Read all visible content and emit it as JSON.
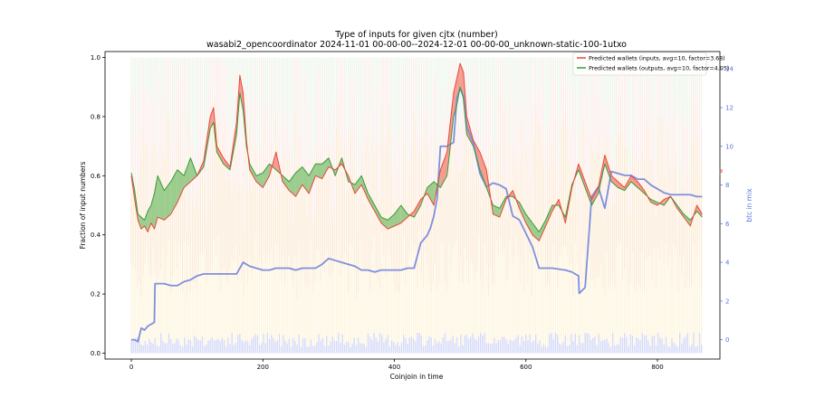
{
  "chart_data": {
    "type": "line",
    "title": "Type of inputs for given cjtx (number)",
    "subtitle": "wasabi2_opencoordinator 2024-11-01 00-00-00--2024-12-01 00-00-00_unknown-static-100-1utxo",
    "xlabel": "Coinjoin in time",
    "ylabel": "Fraction of input numbers",
    "y2label": "btc in mix",
    "xlim": [
      -40,
      895
    ],
    "ylim": [
      -0.02,
      1.02
    ],
    "y2lim": [
      -1.0,
      14.9
    ],
    "xticks": [
      0,
      200,
      400,
      600,
      800
    ],
    "yticks": [
      0.0,
      0.2,
      0.4,
      0.6,
      0.8,
      1.0
    ],
    "y2ticks": [
      0,
      2,
      4,
      6,
      8,
      10,
      12,
      14
    ],
    "legend_position": "top-right",
    "grid": false,
    "colors": {
      "inputs": "#e8483a",
      "outputs": "#3a9a3a",
      "fill_inputs_above": "#f08070",
      "fill_outputs_above": "#7cc070",
      "btc": "#7f8fde",
      "right_axis": "#5577dd",
      "annotation": "#e8483a"
    },
    "annotation": "w",
    "series": [
      {
        "name": "Predicted wallets (inputs, avg=10, factor=3.68)",
        "x": [
          0,
          5,
          10,
          15,
          20,
          25,
          30,
          35,
          40,
          50,
          60,
          70,
          80,
          90,
          100,
          110,
          120,
          125,
          130,
          140,
          150,
          160,
          165,
          170,
          175,
          180,
          190,
          200,
          210,
          220,
          230,
          240,
          250,
          260,
          270,
          280,
          290,
          300,
          310,
          320,
          330,
          340,
          350,
          360,
          370,
          380,
          390,
          400,
          410,
          420,
          430,
          440,
          450,
          460,
          470,
          480,
          490,
          495,
          500,
          505,
          510,
          520,
          530,
          540,
          550,
          560,
          570,
          580,
          590,
          600,
          610,
          620,
          630,
          640,
          650,
          660,
          670,
          680,
          690,
          700,
          710,
          720,
          730,
          740,
          750,
          760,
          770,
          780,
          790,
          800,
          810,
          820,
          830,
          840,
          850,
          860,
          868
        ],
        "values": [
          0.6,
          0.52,
          0.45,
          0.42,
          0.43,
          0.41,
          0.44,
          0.42,
          0.46,
          0.45,
          0.47,
          0.51,
          0.56,
          0.58,
          0.6,
          0.65,
          0.8,
          0.83,
          0.7,
          0.66,
          0.63,
          0.78,
          0.94,
          0.88,
          0.72,
          0.62,
          0.58,
          0.56,
          0.6,
          0.68,
          0.58,
          0.55,
          0.53,
          0.57,
          0.54,
          0.6,
          0.59,
          0.63,
          0.62,
          0.64,
          0.6,
          0.54,
          0.57,
          0.52,
          0.48,
          0.44,
          0.42,
          0.43,
          0.44,
          0.46,
          0.48,
          0.52,
          0.54,
          0.5,
          0.62,
          0.68,
          0.88,
          0.93,
          0.98,
          0.95,
          0.8,
          0.72,
          0.68,
          0.62,
          0.47,
          0.46,
          0.52,
          0.55,
          0.49,
          0.44,
          0.4,
          0.38,
          0.43,
          0.48,
          0.52,
          0.44,
          0.56,
          0.64,
          0.58,
          0.52,
          0.56,
          0.67,
          0.6,
          0.58,
          0.56,
          0.6,
          0.58,
          0.55,
          0.51,
          0.5,
          0.52,
          0.53,
          0.49,
          0.46,
          0.43,
          0.5,
          0.47
        ]
      },
      {
        "name": "Predicted wallets (outputs, avg=10, factor=4.05)",
        "x": [
          0,
          5,
          10,
          15,
          20,
          25,
          30,
          35,
          40,
          50,
          60,
          70,
          80,
          90,
          100,
          110,
          120,
          125,
          130,
          140,
          150,
          160,
          165,
          170,
          175,
          180,
          190,
          200,
          210,
          220,
          230,
          240,
          250,
          260,
          270,
          280,
          290,
          300,
          310,
          320,
          330,
          340,
          350,
          360,
          370,
          380,
          390,
          400,
          410,
          420,
          430,
          440,
          450,
          460,
          470,
          480,
          490,
          495,
          500,
          505,
          510,
          520,
          530,
          540,
          550,
          560,
          570,
          580,
          590,
          600,
          610,
          620,
          630,
          640,
          650,
          660,
          670,
          680,
          690,
          700,
          710,
          720,
          730,
          740,
          750,
          760,
          770,
          780,
          790,
          800,
          810,
          820,
          830,
          840,
          850,
          860,
          868
        ],
        "values": [
          0.61,
          0.55,
          0.47,
          0.46,
          0.45,
          0.48,
          0.5,
          0.54,
          0.6,
          0.55,
          0.58,
          0.62,
          0.6,
          0.66,
          0.6,
          0.63,
          0.76,
          0.78,
          0.68,
          0.64,
          0.62,
          0.74,
          0.88,
          0.82,
          0.7,
          0.64,
          0.6,
          0.61,
          0.64,
          0.62,
          0.6,
          0.58,
          0.61,
          0.63,
          0.6,
          0.64,
          0.64,
          0.66,
          0.6,
          0.66,
          0.58,
          0.57,
          0.6,
          0.54,
          0.5,
          0.46,
          0.45,
          0.47,
          0.5,
          0.47,
          0.46,
          0.5,
          0.56,
          0.58,
          0.56,
          0.6,
          0.8,
          0.84,
          0.9,
          0.86,
          0.74,
          0.7,
          0.62,
          0.56,
          0.5,
          0.49,
          0.53,
          0.53,
          0.51,
          0.47,
          0.44,
          0.41,
          0.45,
          0.5,
          0.5,
          0.46,
          0.57,
          0.62,
          0.56,
          0.5,
          0.54,
          0.64,
          0.58,
          0.56,
          0.55,
          0.58,
          0.56,
          0.54,
          0.52,
          0.51,
          0.5,
          0.53,
          0.5,
          0.47,
          0.45,
          0.48,
          0.46
        ]
      },
      {
        "name": "btc in mix",
        "axis": "right",
        "x": [
          0,
          5,
          10,
          15,
          20,
          25,
          30,
          35,
          36,
          40,
          50,
          60,
          70,
          80,
          90,
          100,
          110,
          120,
          130,
          140,
          150,
          160,
          165,
          170,
          175,
          180,
          190,
          200,
          210,
          220,
          230,
          240,
          250,
          260,
          270,
          280,
          290,
          300,
          310,
          320,
          330,
          340,
          350,
          360,
          370,
          380,
          390,
          400,
          410,
          420,
          430,
          440,
          450,
          455,
          460,
          465,
          470,
          480,
          490,
          495,
          500,
          505,
          510,
          520,
          530,
          540,
          550,
          560,
          570,
          580,
          590,
          600,
          610,
          620,
          630,
          640,
          660,
          670,
          680,
          681,
          690,
          700,
          710,
          720,
          730,
          740,
          750,
          760,
          770,
          780,
          790,
          800,
          810,
          820,
          830,
          840,
          850,
          860,
          868
        ],
        "values": [
          0.0,
          0.0,
          -0.1,
          0.6,
          0.5,
          0.7,
          0.8,
          0.9,
          2.9,
          2.9,
          2.9,
          2.8,
          2.8,
          3.0,
          3.1,
          3.3,
          3.4,
          3.4,
          3.4,
          3.4,
          3.4,
          3.4,
          3.7,
          4.0,
          3.9,
          3.8,
          3.7,
          3.6,
          3.6,
          3.7,
          3.7,
          3.7,
          3.6,
          3.7,
          3.7,
          3.7,
          3.9,
          4.2,
          4.1,
          4.0,
          3.9,
          3.8,
          3.6,
          3.6,
          3.5,
          3.6,
          3.6,
          3.6,
          3.6,
          3.7,
          3.7,
          5.0,
          5.4,
          5.8,
          6.4,
          7.3,
          10.0,
          10.0,
          10.2,
          12.5,
          13.0,
          12.6,
          11.0,
          10.2,
          8.6,
          7.9,
          8.1,
          8.0,
          7.8,
          6.4,
          6.2,
          5.5,
          4.8,
          3.7,
          3.7,
          3.7,
          3.6,
          3.5,
          3.3,
          2.4,
          2.7,
          7.4,
          7.9,
          6.8,
          8.7,
          8.6,
          8.5,
          8.5,
          8.3,
          8.3,
          8.0,
          7.8,
          7.6,
          7.5,
          7.5,
          7.5,
          7.5,
          7.4,
          7.4
        ]
      }
    ]
  }
}
